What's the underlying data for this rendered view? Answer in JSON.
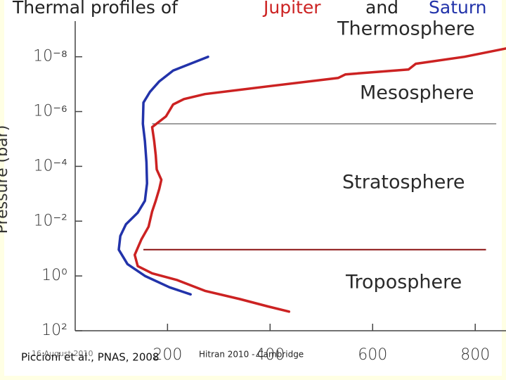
{
  "chart_data": {
    "type": "line",
    "title_segments": [
      {
        "text": "Thermal profiles of",
        "color": "#222222"
      },
      {
        "text": "Jupiter",
        "color": "#cc2222"
      },
      {
        "text": "and",
        "color": "#222222"
      },
      {
        "text": "Saturn",
        "color": "#2233aa"
      }
    ],
    "y_label": "Pressure (bar)",
    "log_y": true,
    "y_inverted": true,
    "xlim": [
      20,
      860
    ],
    "ylim": [
      5e-10,
      100
    ],
    "xticks": [
      200,
      400,
      600,
      800
    ],
    "yticks": [
      {
        "value": 1e-08,
        "label": "10⁻⁸"
      },
      {
        "value": 1e-06,
        "label": "10⁻⁶"
      },
      {
        "value": 0.0001,
        "label": "10⁻⁴"
      },
      {
        "value": 0.01,
        "label": "10⁻²"
      },
      {
        "value": 1,
        "label": "10⁰"
      },
      {
        "value": 100,
        "label": "10²"
      }
    ],
    "series": [
      {
        "color": "#cc2222",
        "x": [
          437,
          396,
          341,
          273,
          218,
          170,
          142,
          136,
          149,
          163,
          170,
          177,
          184,
          188,
          179,
          177,
          174,
          170,
          197,
          211,
          232,
          273,
          396,
          533,
          547,
          670,
          684,
          779,
          862
        ],
        "values": [
          20,
          13,
          7,
          3.5,
          1.4,
          0.8,
          0.44,
          0.17,
          0.047,
          0.016,
          0.0044,
          0.0018,
          0.00066,
          0.00031,
          0.00013,
          3.9e-05,
          1.2e-05,
          3.7e-06,
          1.5e-06,
          5.5e-07,
          3.5e-07,
          2.3e-07,
          1.2e-07,
          5.9e-08,
          4.4e-08,
          2.9e-08,
          1.8e-08,
          1e-08,
          4.9e-09
        ]
      },
      {
        "color": "#2233aa",
        "x": [
          245,
          204,
          156,
          122,
          105,
          108,
          119,
          142,
          156,
          160,
          159,
          156,
          152,
          153,
          166,
          184,
          211,
          279
        ],
        "values": [
          4.7,
          2.6,
          1,
          0.37,
          0.11,
          0.035,
          0.013,
          0.0049,
          0.0018,
          0.00042,
          7.1e-05,
          1.2e-05,
          2.8e-06,
          4.7e-07,
          1.9e-07,
          7.9e-08,
          3.2e-08,
          1e-08
        ]
      }
    ],
    "boundaries": [
      {
        "y": 2.8e-06,
        "x": [
          170,
          841
        ]
      },
      {
        "y": 0.11,
        "x": [
          153,
          821
        ]
      }
    ],
    "annotations": [
      "Thermosphere",
      "Mesosphere",
      "Stratosphere",
      "Troposphere"
    ],
    "footer": {
      "citation": "Piccioni et al., PNAS, 2008",
      "date": "16 August 2010",
      "event": "Hitran 2010 - Cambridge"
    }
  }
}
